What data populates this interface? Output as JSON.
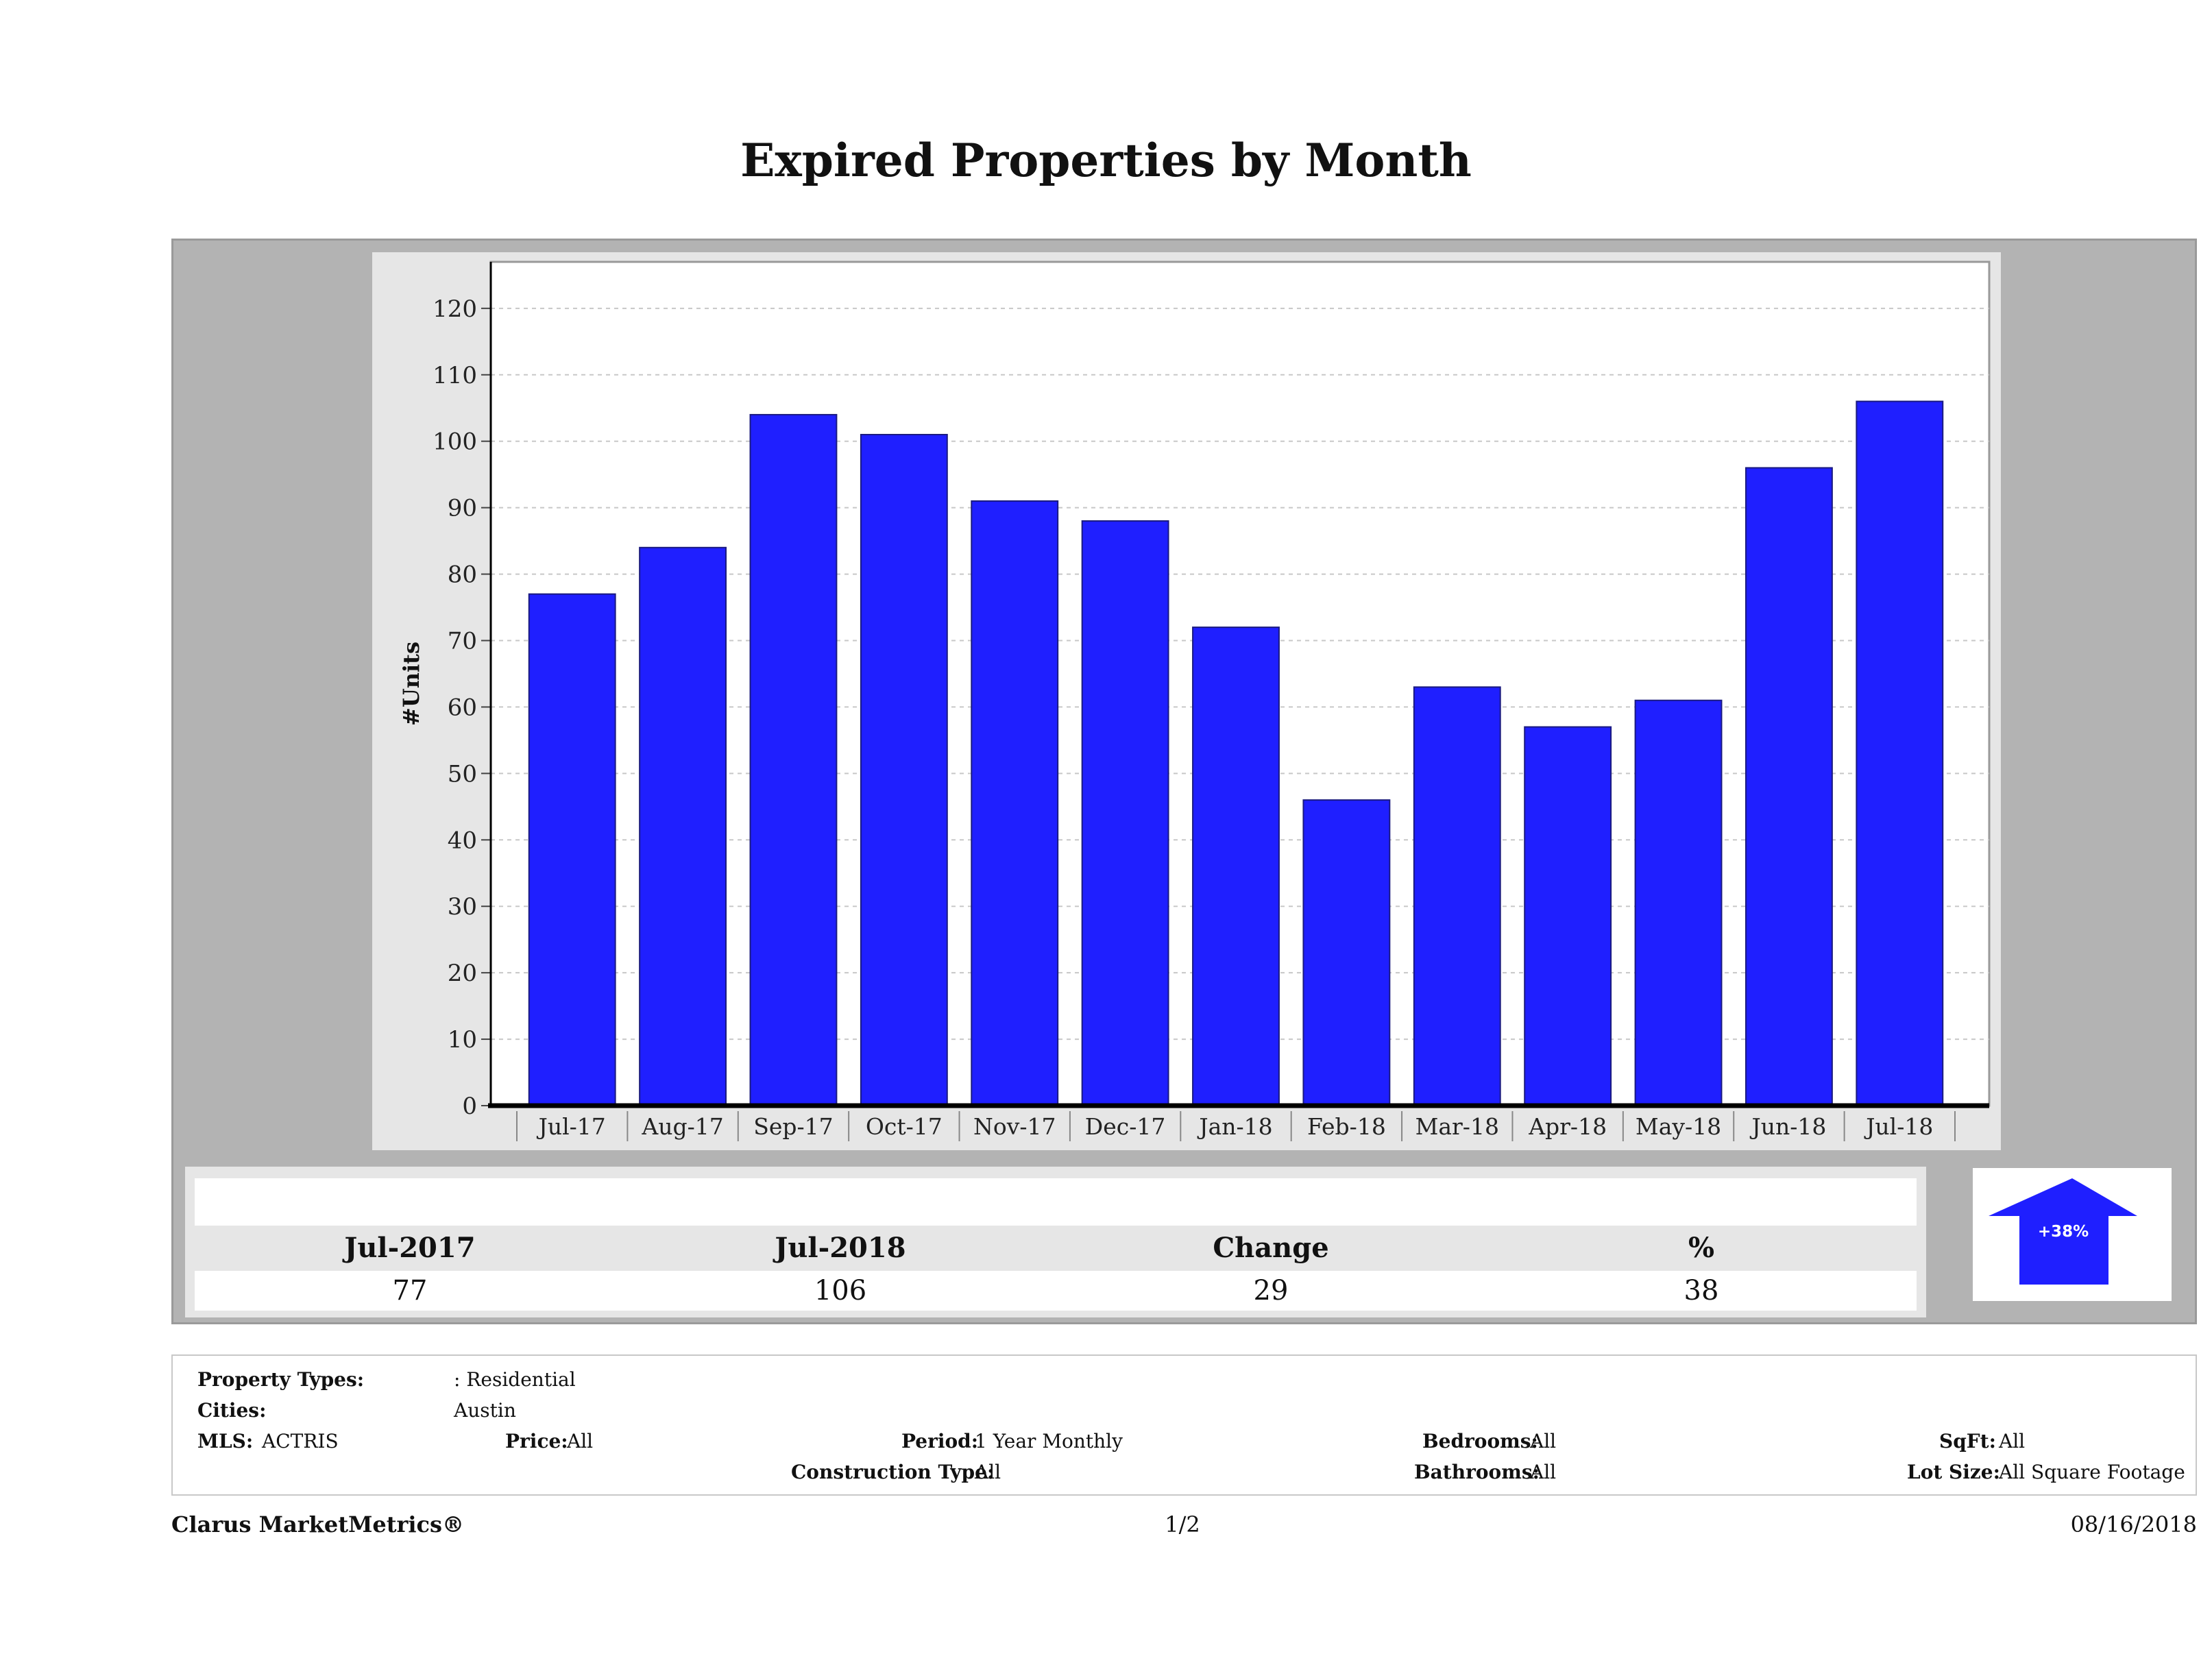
{
  "title": "Expired Properties by Month",
  "chart_data": {
    "type": "bar",
    "title": "Expired Properties by Month",
    "ylabel": "#Units",
    "xlabel": "",
    "categories": [
      "Jul-17",
      "Aug-17",
      "Sep-17",
      "Oct-17",
      "Nov-17",
      "Dec-17",
      "Jan-18",
      "Feb-18",
      "Mar-18",
      "Apr-18",
      "May-18",
      "Jun-18",
      "Jul-18"
    ],
    "values": [
      77,
      84,
      104,
      101,
      91,
      88,
      72,
      46,
      63,
      57,
      61,
      96,
      106
    ],
    "ylim": [
      0,
      127
    ],
    "yticks": [
      0,
      10,
      20,
      30,
      40,
      50,
      60,
      70,
      80,
      90,
      100,
      110,
      120
    ],
    "grid": true,
    "bar_color": "#1f1fff"
  },
  "summary": {
    "headers": [
      "Jul-2017",
      "Jul-2018",
      "Change",
      "%"
    ],
    "values": [
      "77",
      "106",
      "29",
      "38"
    ],
    "arrow_label": "+38%",
    "arrow_color": "#1f1fff"
  },
  "criteria": {
    "property_types_label": "Property Types:",
    "property_types_value": ": Residential",
    "cities_label": "Cities:",
    "cities_value": "Austin",
    "mls_label": "MLS:",
    "mls_value": "ACTRIS",
    "price_label": "Price:",
    "price_value": "All",
    "period_label": "Period:",
    "period_value": "1 Year Monthly",
    "construction_label": "Construction Type:",
    "construction_value": "All",
    "bedrooms_label": "Bedrooms:",
    "bedrooms_value": "All",
    "bathrooms_label": "Bathrooms:",
    "bathrooms_value": "All",
    "sqft_label": "SqFt:",
    "sqft_value": "All",
    "lotsize_label": "Lot Size:",
    "lotsize_value": "All Square Footage"
  },
  "footer": {
    "brand": "Clarus MarketMetrics®",
    "page": "1/2",
    "date": "08/16/2018"
  }
}
